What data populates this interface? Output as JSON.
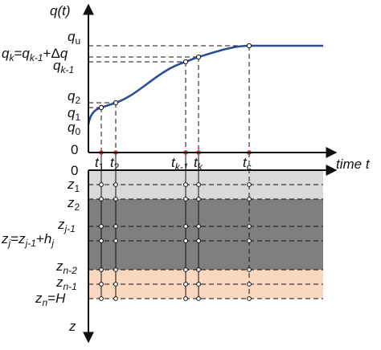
{
  "axes": {
    "q_axis": "q(t)",
    "t_axis": "time t",
    "z_axis": "z"
  },
  "q_labels": {
    "qu": {
      "base": "q",
      "sub": "u"
    },
    "qk": {
      "lhs": "q",
      "lhs_sub": "k",
      "eq": "=",
      "rhs": "q",
      "rhs_sub": "k-1",
      "plus": "+Δ",
      "tail": "q"
    },
    "qk1": {
      "base": "q",
      "sub": "k-1"
    },
    "q2": {
      "base": "q",
      "sub": "2"
    },
    "q1": {
      "base": "q",
      "sub": "1"
    },
    "q0": {
      "base": "q",
      "sub": "0"
    },
    "zero": "0"
  },
  "t_labels": {
    "t1": {
      "base": "t",
      "sub": "1"
    },
    "t2": {
      "base": "t",
      "sub": "2"
    },
    "tk1": {
      "base": "t",
      "sub": "k-1"
    },
    "tk": {
      "base": "t",
      "sub": "k"
    },
    "tc": {
      "base": "t",
      "sub": "c"
    }
  },
  "z_labels": {
    "z0": "0",
    "z1": {
      "base": "z",
      "sub": "1"
    },
    "z2": {
      "base": "z",
      "sub": "2"
    },
    "zj1": {
      "base": "z",
      "sub": "j-1"
    },
    "zj": {
      "lhs": "z",
      "lhs_sub": "j",
      "eq": "=",
      "rhs": "z",
      "rhs_sub": "j-1",
      "plus": "+",
      "h": "h",
      "h_sub": "j"
    },
    "zn2": {
      "base": "z",
      "sub": "n-2"
    },
    "zn1": {
      "base": "z",
      "sub": "n-1"
    },
    "zn": {
      "base": "z",
      "sub": "n",
      "eq": "=",
      "H": "H"
    }
  },
  "colors": {
    "curve": "#2b4e96",
    "marker_red": "#e03030",
    "layer_light": "#d9d9d9",
    "layer_dark": "#7f7f7f",
    "layer_peach": "#fad7bf"
  }
}
